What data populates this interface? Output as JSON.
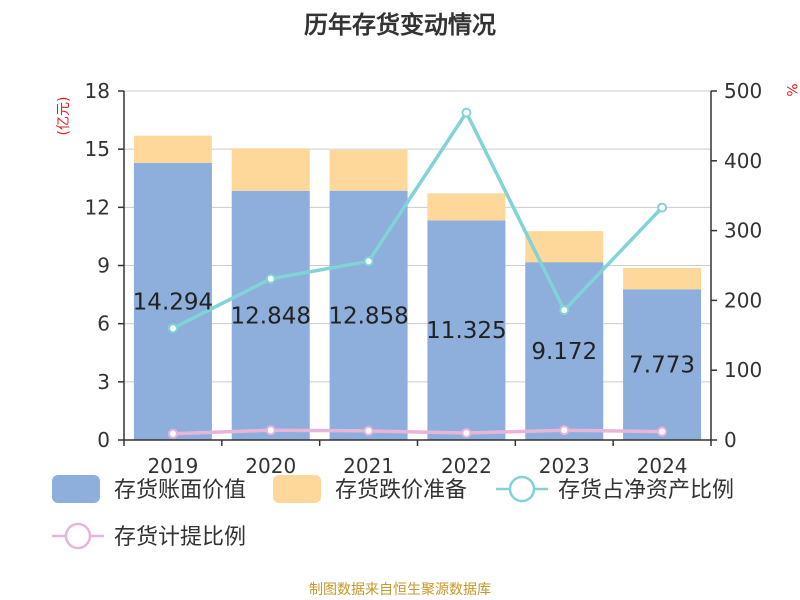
{
  "chart_data": {
    "type": "bar",
    "title": "历年存货变动情况",
    "categories": [
      "2019",
      "2020",
      "2021",
      "2022",
      "2023",
      "2024"
    ],
    "y_left": {
      "unit_label": "(亿元)",
      "ylim": [
        0,
        18
      ],
      "ticks": [
        "0",
        "3",
        "6",
        "9",
        "12",
        "15",
        "18"
      ]
    },
    "y_right": {
      "unit_label": "%",
      "ylim": [
        0,
        500
      ],
      "ticks": [
        "0",
        "100",
        "200",
        "300",
        "400",
        "500"
      ]
    },
    "grid": true,
    "legend_position": "bottom",
    "series": [
      {
        "name": "存货账面价值",
        "kind": "stacked-bar",
        "axis": "left",
        "color": "#8eaedb",
        "values": [
          14.294,
          12.848,
          12.858,
          11.325,
          9.172,
          7.773
        ],
        "data_labels": [
          "14.294",
          "12.848",
          "12.858",
          "11.325",
          "9.172",
          "7.773"
        ]
      },
      {
        "name": "存货跌价准备",
        "kind": "stacked-bar",
        "axis": "left",
        "color": "#fdd89a",
        "values": [
          1.4,
          2.2,
          2.1,
          1.4,
          1.6,
          1.1
        ]
      },
      {
        "name": "存货占净资产比例",
        "kind": "line",
        "axis": "right",
        "color": "#82d3d6",
        "values": [
          160,
          231,
          256,
          469,
          186,
          333
        ]
      },
      {
        "name": "存货计提比例",
        "kind": "line",
        "axis": "right",
        "color": "#e9b4da",
        "values": [
          9,
          14,
          13,
          10,
          14,
          12
        ]
      }
    ]
  },
  "footer": {
    "source": "制图数据来自恒生聚源数据库"
  }
}
